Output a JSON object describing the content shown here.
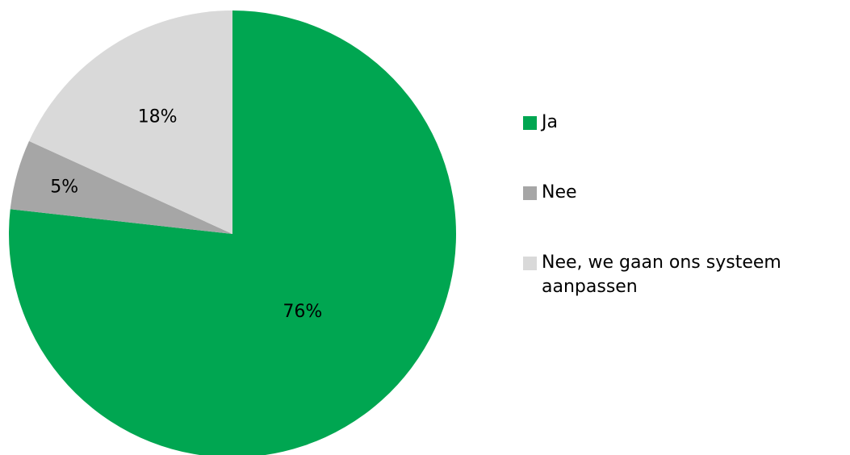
{
  "chart_data": {
    "type": "pie",
    "title": "",
    "start_angle": "12 o'clock, clockwise",
    "slices": [
      {
        "label": "Ja",
        "value": 76,
        "display": "76%",
        "color": "#00a651"
      },
      {
        "label": "Nee",
        "value": 5,
        "display": "5%",
        "color": "#a6a6a6"
      },
      {
        "label": "Nee, we gaan ons systeem\naanpassen",
        "value": 18,
        "display": "18%",
        "color": "#d9d9d9"
      }
    ],
    "legend_position": "right"
  }
}
